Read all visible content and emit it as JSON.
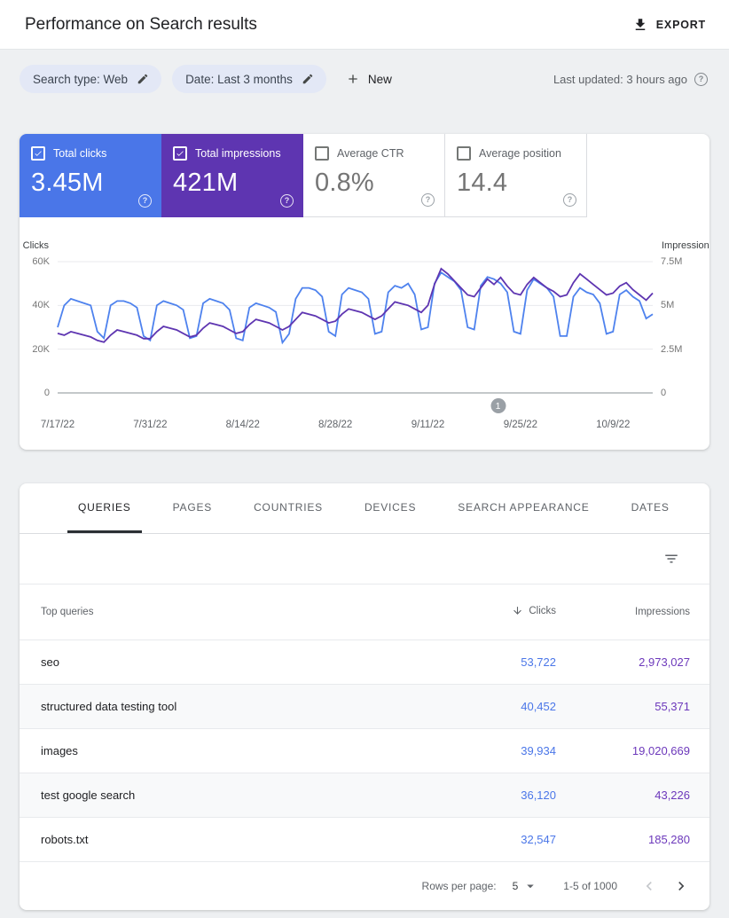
{
  "header": {
    "title": "Performance on Search results",
    "export_label": "EXPORT"
  },
  "filters": {
    "chips": [
      {
        "label": "Search type: Web"
      },
      {
        "label": "Date: Last 3 months"
      }
    ],
    "new_label": "New",
    "last_updated": "Last updated: 3 hours ago"
  },
  "colors": {
    "clicks_blue": "#4a76e8",
    "impressions_purple": "#5e35b1",
    "table_clicks_value": "#4a76e8",
    "table_impressions_value": "#6c38bb"
  },
  "metrics": [
    {
      "label": "Total clicks",
      "value": "3.45M",
      "selected": true,
      "color": "#4a76e8"
    },
    {
      "label": "Total impressions",
      "value": "421M",
      "selected": true,
      "color": "#5e35b1"
    },
    {
      "label": "Average CTR",
      "value": "0.8%",
      "selected": false,
      "color": ""
    },
    {
      "label": "Average position",
      "value": "14.4",
      "selected": false,
      "color": ""
    }
  ],
  "chart_data": {
    "type": "line",
    "title": "",
    "x_tick_labels": [
      "7/17/22",
      "7/31/22",
      "8/14/22",
      "8/28/22",
      "9/11/22",
      "9/25/22",
      "10/9/22"
    ],
    "x_tick_indices": [
      0,
      14,
      28,
      42,
      56,
      70,
      84
    ],
    "left_axis": {
      "label": "Clicks",
      "units": "thousands",
      "max": 60,
      "ticks_top_to_bottom": [
        "60K",
        "40K",
        "20K",
        "0"
      ]
    },
    "right_axis": {
      "label": "Impressions",
      "units": "millions",
      "max": 7.5,
      "ticks_top_to_bottom": [
        "7.5M",
        "5M",
        "2.5M",
        "0"
      ]
    },
    "grid": true,
    "legend": "none",
    "annotation": {
      "label": "1",
      "x_fraction": 0.74
    },
    "series": [
      {
        "name": "Total clicks",
        "axis": "left",
        "color": "#4e82ee",
        "values": [
          30,
          40,
          43,
          42,
          41,
          40,
          28,
          25,
          40,
          42,
          42,
          41,
          39,
          26,
          24,
          40,
          42,
          41,
          40,
          38,
          25,
          26,
          41,
          43,
          42,
          41,
          38,
          25,
          24,
          39,
          41,
          40,
          39,
          37,
          23,
          27,
          43,
          48,
          48,
          47,
          44,
          28,
          26,
          45,
          48,
          47,
          46,
          43,
          27,
          28,
          46,
          49,
          48,
          50,
          45,
          29,
          30,
          50,
          55,
          53,
          51,
          47,
          30,
          29,
          49,
          53,
          52,
          50,
          46,
          28,
          27,
          47,
          52,
          50,
          48,
          44,
          26,
          26,
          44,
          48,
          46,
          45,
          41,
          27,
          28,
          45,
          47,
          44,
          42,
          34,
          36
        ]
      },
      {
        "name": "Total impressions",
        "axis": "right",
        "color": "#5e35b1",
        "values": [
          3.4,
          3.3,
          3.5,
          3.4,
          3.3,
          3.2,
          3.0,
          2.9,
          3.3,
          3.6,
          3.5,
          3.4,
          3.3,
          3.1,
          3.1,
          3.5,
          3.8,
          3.7,
          3.6,
          3.4,
          3.2,
          3.3,
          3.7,
          4.0,
          3.9,
          3.8,
          3.6,
          3.4,
          3.5,
          3.9,
          4.2,
          4.1,
          4.0,
          3.8,
          3.6,
          3.8,
          4.2,
          4.6,
          4.5,
          4.4,
          4.2,
          4.0,
          4.1,
          4.5,
          4.8,
          4.7,
          4.6,
          4.4,
          4.2,
          4.4,
          4.8,
          5.2,
          5.1,
          5.0,
          4.8,
          4.6,
          5.0,
          6.2,
          7.1,
          6.8,
          6.4,
          6.0,
          5.6,
          5.5,
          6.0,
          6.5,
          6.2,
          6.6,
          6.1,
          5.7,
          5.6,
          6.2,
          6.6,
          6.3,
          6.0,
          5.8,
          5.5,
          5.6,
          6.3,
          6.8,
          6.5,
          6.2,
          5.9,
          5.6,
          5.7,
          6.1,
          6.3,
          5.9,
          5.6,
          5.3,
          5.7
        ]
      }
    ]
  },
  "tabs": [
    "QUERIES",
    "PAGES",
    "COUNTRIES",
    "DEVICES",
    "SEARCH APPEARANCE",
    "DATES"
  ],
  "active_tab_index": 0,
  "table": {
    "columns": {
      "query": "Top queries",
      "clicks": "Clicks",
      "impressions": "Impressions"
    },
    "sort_column": "clicks",
    "rows": [
      {
        "query": "seo",
        "clicks": "53,722",
        "impressions": "2,973,027"
      },
      {
        "query": "structured data testing tool",
        "clicks": "40,452",
        "impressions": "55,371"
      },
      {
        "query": "images",
        "clicks": "39,934",
        "impressions": "19,020,669"
      },
      {
        "query": "test google search",
        "clicks": "36,120",
        "impressions": "43,226"
      },
      {
        "query": "robots.txt",
        "clicks": "32,547",
        "impressions": "185,280"
      }
    ]
  },
  "pagination": {
    "rows_per_page_label": "Rows per page:",
    "rows_per_page_value": "5",
    "range_label": "1-5 of 1000"
  }
}
